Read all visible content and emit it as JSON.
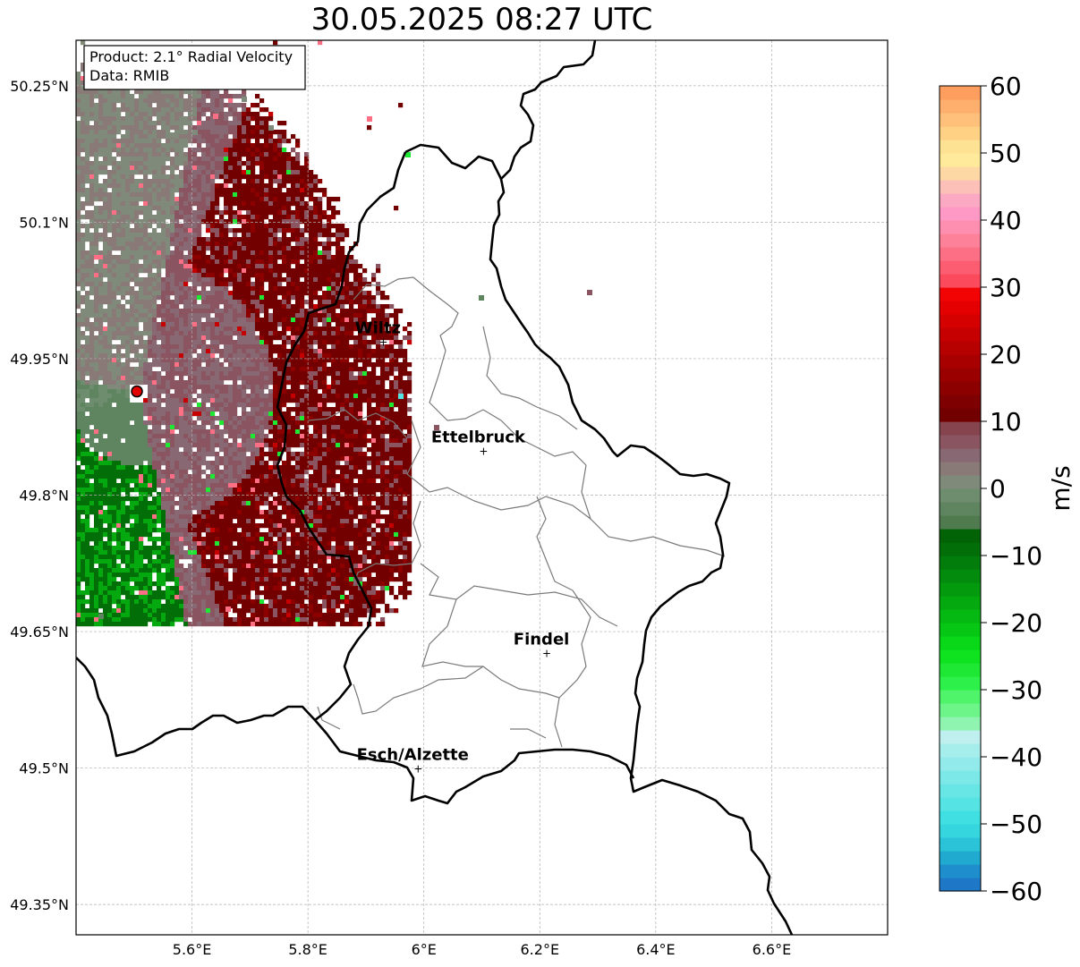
{
  "title": "30.05.2025 08:27 UTC",
  "info": {
    "product": "Product: 2.1° Radial Velocity",
    "data": "Data: RMIB"
  },
  "map": {
    "lon_range": [
      5.4,
      6.8
    ],
    "lat_range": [
      49.3167,
      50.3
    ],
    "x_ticks": [
      {
        "value": 5.6,
        "label": "5.6°E"
      },
      {
        "value": 5.8,
        "label": "5.8°E"
      },
      {
        "value": 6.0,
        "label": "6°E"
      },
      {
        "value": 6.2,
        "label": "6.2°E"
      },
      {
        "value": 6.4,
        "label": "6.4°E"
      },
      {
        "value": 6.6,
        "label": "6.6°E"
      }
    ],
    "y_ticks": [
      {
        "value": 50.25,
        "label": "50.25°N"
      },
      {
        "value": 50.1,
        "label": "50.1°N"
      },
      {
        "value": 49.95,
        "label": "49.95°N"
      },
      {
        "value": 49.8,
        "label": "49.8°N"
      },
      {
        "value": 49.65,
        "label": "49.65°N"
      },
      {
        "value": 49.5,
        "label": "49.5°N"
      },
      {
        "value": 49.35,
        "label": "49.35°N"
      }
    ],
    "radar": {
      "lon": 5.505,
      "lat": 49.914
    },
    "cities": [
      {
        "name": "Wiltz",
        "lon": 5.93,
        "lat": 49.968
      },
      {
        "name": "Ettelbruck",
        "lon": 6.103,
        "lat": 49.848
      },
      {
        "name": "Findel",
        "lon": 6.212,
        "lat": 49.626
      },
      {
        "name": "Esch/Alzette",
        "lon": 5.99,
        "lat": 49.499
      }
    ]
  },
  "colorbar": {
    "label": "m/s",
    "min": -60,
    "max": 60,
    "ticks": [
      {
        "value": 60,
        "label": "60"
      },
      {
        "value": 50,
        "label": "50"
      },
      {
        "value": 40,
        "label": "40"
      },
      {
        "value": 30,
        "label": "30"
      },
      {
        "value": 20,
        "label": "20"
      },
      {
        "value": 10,
        "label": "10"
      },
      {
        "value": 0,
        "label": "0"
      },
      {
        "value": -10,
        "label": "−10"
      },
      {
        "value": -20,
        "label": "−20"
      },
      {
        "value": -30,
        "label": "−30"
      },
      {
        "value": -40,
        "label": "−40"
      },
      {
        "value": -50,
        "label": "−50"
      },
      {
        "value": -60,
        "label": "−60"
      }
    ],
    "bands": [
      {
        "from": -60,
        "to": -58,
        "color": "#1f77c8"
      },
      {
        "from": -58,
        "to": -56,
        "color": "#1e8fcc"
      },
      {
        "from": -56,
        "to": -54,
        "color": "#21aad0"
      },
      {
        "from": -54,
        "to": -52,
        "color": "#2bc3d8"
      },
      {
        "from": -52,
        "to": -50,
        "color": "#35d6de"
      },
      {
        "from": -50,
        "to": -48,
        "color": "#3fdfe2"
      },
      {
        "from": -48,
        "to": -46,
        "color": "#55e3e4"
      },
      {
        "from": -46,
        "to": -44,
        "color": "#68e6e6"
      },
      {
        "from": -44,
        "to": -42,
        "color": "#7ce9e8"
      },
      {
        "from": -42,
        "to": -40,
        "color": "#92ebea"
      },
      {
        "from": -40,
        "to": -38,
        "color": "#a6eeec"
      },
      {
        "from": -38,
        "to": -36,
        "color": "#bff0ef"
      },
      {
        "from": -36,
        "to": -34,
        "color": "#8ef4b0"
      },
      {
        "from": -34,
        "to": -32,
        "color": "#6ef58a"
      },
      {
        "from": -32,
        "to": -30,
        "color": "#4ff46b"
      },
      {
        "from": -30,
        "to": -28,
        "color": "#2ef04a"
      },
      {
        "from": -28,
        "to": -26,
        "color": "#1ee834"
      },
      {
        "from": -26,
        "to": -24,
        "color": "#0fe31f"
      },
      {
        "from": -24,
        "to": -22,
        "color": "#08d818"
      },
      {
        "from": -22,
        "to": -20,
        "color": "#06c714"
      },
      {
        "from": -20,
        "to": -18,
        "color": "#05b812"
      },
      {
        "from": -18,
        "to": -16,
        "color": "#04a910"
      },
      {
        "from": -16,
        "to": -14,
        "color": "#039a0e"
      },
      {
        "from": -14,
        "to": -12,
        "color": "#028b0c"
      },
      {
        "from": -12,
        "to": -10,
        "color": "#027c0a"
      },
      {
        "from": -10,
        "to": -8,
        "color": "#016e08"
      },
      {
        "from": -8,
        "to": -6,
        "color": "#016206"
      },
      {
        "from": -6,
        "to": -4,
        "color": "#4f7b4f"
      },
      {
        "from": -4,
        "to": -2,
        "color": "#5e8460"
      },
      {
        "from": -2,
        "to": 0,
        "color": "#6e8c6e"
      },
      {
        "from": 0,
        "to": 2,
        "color": "#7f8a7a"
      },
      {
        "from": 2,
        "to": 4,
        "color": "#897a78"
      },
      {
        "from": 4,
        "to": 6,
        "color": "#886872"
      },
      {
        "from": 6,
        "to": 8,
        "color": "#8a5560"
      },
      {
        "from": 8,
        "to": 10,
        "color": "#86444e"
      },
      {
        "from": 10,
        "to": 12,
        "color": "#720000"
      },
      {
        "from": 12,
        "to": 14,
        "color": "#7e0000"
      },
      {
        "from": 14,
        "to": 16,
        "color": "#8c0000"
      },
      {
        "from": 16,
        "to": 18,
        "color": "#9a0000"
      },
      {
        "from": 18,
        "to": 20,
        "color": "#a80000"
      },
      {
        "from": 20,
        "to": 22,
        "color": "#b70000"
      },
      {
        "from": 22,
        "to": 24,
        "color": "#c60000"
      },
      {
        "from": 24,
        "to": 26,
        "color": "#d50000"
      },
      {
        "from": 26,
        "to": 28,
        "color": "#e40000"
      },
      {
        "from": 28,
        "to": 30,
        "color": "#f20404"
      },
      {
        "from": 30,
        "to": 32,
        "color": "#fb4a5c"
      },
      {
        "from": 32,
        "to": 34,
        "color": "#fc5d70"
      },
      {
        "from": 34,
        "to": 36,
        "color": "#fd6f84"
      },
      {
        "from": 36,
        "to": 38,
        "color": "#fd8199"
      },
      {
        "from": 38,
        "to": 40,
        "color": "#fe8fb0"
      },
      {
        "from": 40,
        "to": 42,
        "color": "#fe98c4"
      },
      {
        "from": 42,
        "to": 44,
        "color": "#fcaac4"
      },
      {
        "from": 44,
        "to": 46,
        "color": "#fcc0b8"
      },
      {
        "from": 46,
        "to": 48,
        "color": "#fdd7a4"
      },
      {
        "from": 48,
        "to": 50,
        "color": "#feea9a"
      },
      {
        "from": 50,
        "to": 52,
        "color": "#fee293"
      },
      {
        "from": 52,
        "to": 54,
        "color": "#fed185"
      },
      {
        "from": 54,
        "to": 56,
        "color": "#fec07a"
      },
      {
        "from": 56,
        "to": 58,
        "color": "#feae6d"
      },
      {
        "from": 58,
        "to": 60,
        "color": "#fe9e5e"
      }
    ]
  },
  "colors": {
    "country_border": "#000000",
    "canton_border": "#7a7a7a",
    "grid": "#b0b0b0",
    "radar_marker": "#e00000"
  }
}
